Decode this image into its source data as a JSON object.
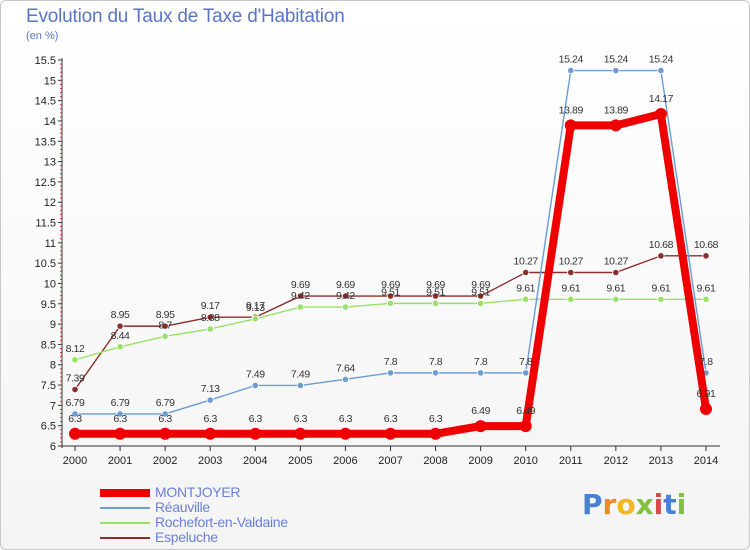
{
  "title": "Evolution du Taux de Taxe d'Habitation",
  "subtitle": "(en %)",
  "logo_text": [
    "P",
    "r",
    "o",
    "x",
    "i",
    "t",
    "i"
  ],
  "logo_colors": [
    "#4a7fd8",
    "#f08a1c",
    "#f0b81c",
    "#7fc241",
    "#d84a4a",
    "#4a7fd8",
    "#7fc241"
  ],
  "chart_data": {
    "type": "line",
    "title": "Evolution du Taux de Taxe d'Habitation",
    "ylabel": "(en %)",
    "x": [
      "2000",
      "2001",
      "2002",
      "2003",
      "2004",
      "2005",
      "2006",
      "2007",
      "2008",
      "2009",
      "2010",
      "2011",
      "2012",
      "2013",
      "2014"
    ],
    "ylim": [
      6,
      15.5
    ],
    "yticks": [
      "6",
      "6.5",
      "7",
      "7.5",
      "8",
      "8.5",
      "9",
      "9.5",
      "10",
      "10.5",
      "11",
      "11.5",
      "12",
      "12.5",
      "13",
      "13.5",
      "14",
      "14.5",
      "15",
      "15.5"
    ],
    "grid": false,
    "legend_position": "bottom-left",
    "series": [
      {
        "name": "MONTJOYER",
        "color": "#ee0000",
        "values": [
          6.3,
          6.3,
          6.3,
          6.3,
          6.3,
          6.3,
          6.3,
          6.3,
          6.3,
          6.49,
          6.49,
          13.89,
          13.89,
          14.17,
          6.91
        ],
        "labels": [
          "6.3",
          "6.3",
          "6.3",
          "6.3",
          "6.3",
          "6.3",
          "6.3",
          "6.3",
          "6.3",
          "6.49",
          "6.49",
          "13.89",
          "13.89",
          "14.17",
          "6.91"
        ]
      },
      {
        "name": "Réauville",
        "color": "#6b9cd6",
        "values": [
          6.79,
          6.79,
          6.79,
          7.13,
          7.49,
          7.49,
          7.64,
          7.8,
          7.8,
          7.8,
          7.8,
          15.24,
          15.24,
          15.24,
          7.8
        ],
        "labels": [
          "6.79",
          "6.79",
          "6.79",
          "7.13",
          "7.49",
          "7.49",
          "7.64",
          "7.8",
          "7.8",
          "7.8",
          "7.8",
          "15.24",
          "15.24",
          "15.24",
          "7.8"
        ]
      },
      {
        "name": "Rochefort-en-Valdaine",
        "color": "#99e266",
        "values": [
          8.12,
          8.44,
          8.7,
          8.88,
          9.13,
          9.42,
          9.42,
          9.51,
          9.51,
          9.51,
          9.61,
          9.61,
          9.61,
          9.61,
          9.61
        ],
        "labels": [
          "8.12",
          "8.44",
          "8.7",
          "8.88",
          "9.13",
          "9.42",
          "9.42",
          "9.51",
          "9.51",
          "9.51",
          "9.61",
          "9.61",
          "9.61",
          "9.61",
          "9.61"
        ]
      },
      {
        "name": "Espeluche",
        "color": "#8b2e2e",
        "values": [
          7.39,
          8.95,
          8.95,
          9.17,
          9.17,
          9.69,
          9.69,
          9.69,
          9.69,
          9.69,
          10.27,
          10.27,
          10.27,
          10.68,
          10.68
        ],
        "labels": [
          "7.39",
          "8.95",
          "8.95",
          "9.17",
          "9.17",
          "9.69",
          "9.69",
          "9.69",
          "9.69",
          "9.69",
          "10.27",
          "10.27",
          "10.27",
          "10.68",
          "10.68"
        ]
      }
    ]
  }
}
